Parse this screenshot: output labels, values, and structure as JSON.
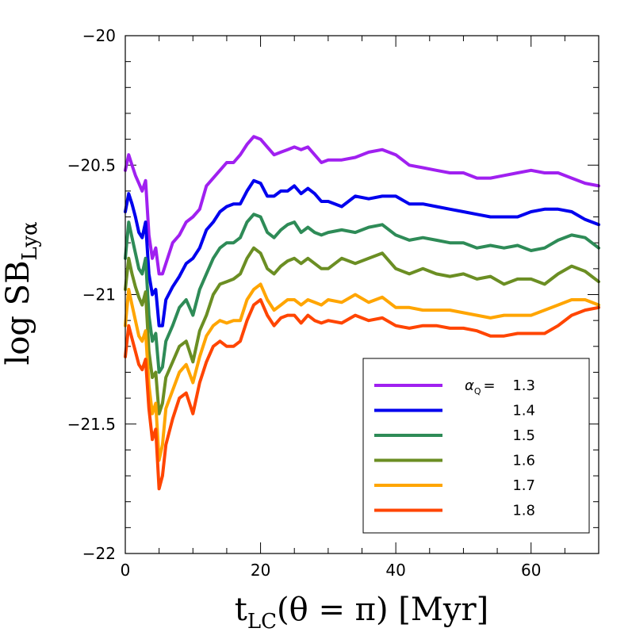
{
  "chart_data": {
    "type": "line",
    "xlabel_main": "t",
    "xlabel_sub": "LC",
    "xlabel_rest": "(θ = π)  [Myr]",
    "ylabel_main": "log SB",
    "ylabel_sub": "Lyα",
    "xlim": [
      0,
      70
    ],
    "ylim": [
      -22,
      -20
    ],
    "xticks_major": [
      0,
      20,
      40,
      60
    ],
    "xticks_minor": [
      5,
      10,
      15,
      25,
      30,
      35,
      45,
      50,
      55,
      65
    ],
    "yticks_major": [
      -22,
      -21.5,
      -21,
      -20.5,
      -20
    ],
    "yticks_labels": [
      "−22",
      "−21.5",
      "−21",
      "−20.5",
      "−20"
    ],
    "yticks_minor_step": 0.1,
    "legend_placement": "bottom-right",
    "legend_prefix": "α",
    "legend_prefix_sub": "Q",
    "legend_eq": "=",
    "series": [
      {
        "name": "1.3",
        "color": "#a020f0",
        "x": [
          0,
          0.5,
          1,
          1.5,
          2,
          2.5,
          3,
          3.5,
          4,
          4.5,
          5,
          5.5,
          6,
          7,
          8,
          9,
          10,
          11,
          12,
          13,
          14,
          15,
          16,
          17,
          18,
          19,
          20,
          21,
          22,
          23,
          24,
          25,
          26,
          27,
          28,
          29,
          30,
          32,
          34,
          36,
          38,
          40,
          42,
          44,
          46,
          48,
          50,
          52,
          54,
          56,
          58,
          60,
          62,
          64,
          66,
          68,
          70
        ],
        "y": [
          -20.52,
          -20.46,
          -20.5,
          -20.54,
          -20.57,
          -20.6,
          -20.56,
          -20.77,
          -20.86,
          -20.82,
          -20.92,
          -20.92,
          -20.88,
          -20.8,
          -20.77,
          -20.72,
          -20.7,
          -20.67,
          -20.58,
          -20.55,
          -20.52,
          -20.49,
          -20.49,
          -20.46,
          -20.42,
          -20.39,
          -20.4,
          -20.43,
          -20.46,
          -20.45,
          -20.44,
          -20.43,
          -20.44,
          -20.43,
          -20.46,
          -20.49,
          -20.48,
          -20.48,
          -20.47,
          -20.45,
          -20.44,
          -20.46,
          -20.5,
          -20.51,
          -20.52,
          -20.53,
          -20.53,
          -20.55,
          -20.55,
          -20.54,
          -20.53,
          -20.52,
          -20.53,
          -20.53,
          -20.55,
          -20.57,
          -20.58
        ]
      },
      {
        "name": "1.4",
        "color": "#0000ee",
        "x": [
          0,
          0.5,
          1,
          1.5,
          2,
          2.5,
          3,
          3.5,
          4,
          4.5,
          5,
          5.5,
          6,
          7,
          8,
          9,
          10,
          11,
          12,
          13,
          14,
          15,
          16,
          17,
          18,
          19,
          20,
          21,
          22,
          23,
          24,
          25,
          26,
          27,
          28,
          29,
          30,
          32,
          34,
          36,
          38,
          40,
          42,
          44,
          46,
          48,
          50,
          52,
          54,
          56,
          58,
          60,
          62,
          64,
          66,
          68,
          70
        ],
        "y": [
          -20.68,
          -20.61,
          -20.65,
          -20.7,
          -20.76,
          -20.78,
          -20.72,
          -20.92,
          -21.0,
          -20.98,
          -21.12,
          -21.12,
          -21.02,
          -20.97,
          -20.93,
          -20.88,
          -20.86,
          -20.82,
          -20.75,
          -20.72,
          -20.68,
          -20.66,
          -20.65,
          -20.65,
          -20.6,
          -20.56,
          -20.57,
          -20.62,
          -20.62,
          -20.6,
          -20.6,
          -20.58,
          -20.61,
          -20.59,
          -20.61,
          -20.64,
          -20.64,
          -20.66,
          -20.62,
          -20.63,
          -20.62,
          -20.62,
          -20.65,
          -20.65,
          -20.66,
          -20.67,
          -20.68,
          -20.69,
          -20.7,
          -20.7,
          -20.7,
          -20.68,
          -20.67,
          -20.67,
          -20.68,
          -20.71,
          -20.73
        ]
      },
      {
        "name": "1.5",
        "color": "#2e8b57",
        "x": [
          0,
          0.5,
          1,
          1.5,
          2,
          2.5,
          3,
          3.5,
          4,
          4.5,
          5,
          5.5,
          6,
          7,
          8,
          9,
          10,
          11,
          12,
          13,
          14,
          15,
          16,
          17,
          18,
          19,
          20,
          21,
          22,
          23,
          24,
          25,
          26,
          27,
          28,
          29,
          30,
          32,
          34,
          36,
          38,
          40,
          42,
          44,
          46,
          48,
          50,
          52,
          54,
          56,
          58,
          60,
          62,
          64,
          66,
          68,
          70
        ],
        "y": [
          -20.86,
          -20.72,
          -20.78,
          -20.84,
          -20.9,
          -20.92,
          -20.86,
          -21.08,
          -21.18,
          -21.15,
          -21.3,
          -21.28,
          -21.18,
          -21.12,
          -21.05,
          -21.02,
          -21.08,
          -20.98,
          -20.92,
          -20.86,
          -20.82,
          -20.8,
          -20.8,
          -20.78,
          -20.72,
          -20.69,
          -20.7,
          -20.76,
          -20.78,
          -20.75,
          -20.73,
          -20.72,
          -20.76,
          -20.74,
          -20.76,
          -20.77,
          -20.76,
          -20.75,
          -20.76,
          -20.74,
          -20.73,
          -20.77,
          -20.79,
          -20.78,
          -20.79,
          -20.8,
          -20.8,
          -20.82,
          -20.81,
          -20.82,
          -20.81,
          -20.83,
          -20.82,
          -20.79,
          -20.77,
          -20.78,
          -20.82
        ]
      },
      {
        "name": "1.6",
        "color": "#6b8e23",
        "x": [
          0,
          0.5,
          1,
          1.5,
          2,
          2.5,
          3,
          3.5,
          4,
          4.5,
          5,
          5.5,
          6,
          7,
          8,
          9,
          10,
          11,
          12,
          13,
          14,
          15,
          16,
          17,
          18,
          19,
          20,
          21,
          22,
          23,
          24,
          25,
          26,
          27,
          28,
          29,
          30,
          32,
          34,
          36,
          38,
          40,
          42,
          44,
          46,
          48,
          50,
          52,
          54,
          56,
          58,
          60,
          62,
          64,
          66,
          68,
          70
        ],
        "y": [
          -20.98,
          -20.86,
          -20.92,
          -20.97,
          -21.01,
          -21.04,
          -20.99,
          -21.22,
          -21.32,
          -21.3,
          -21.46,
          -21.42,
          -21.32,
          -21.26,
          -21.2,
          -21.18,
          -21.26,
          -21.14,
          -21.08,
          -21.0,
          -20.96,
          -20.95,
          -20.94,
          -20.92,
          -20.86,
          -20.82,
          -20.84,
          -20.9,
          -20.92,
          -20.89,
          -20.87,
          -20.86,
          -20.88,
          -20.86,
          -20.88,
          -20.9,
          -20.9,
          -20.86,
          -20.88,
          -20.86,
          -20.84,
          -20.9,
          -20.92,
          -20.9,
          -20.92,
          -20.93,
          -20.92,
          -20.94,
          -20.93,
          -20.96,
          -20.94,
          -20.94,
          -20.96,
          -20.92,
          -20.89,
          -20.91,
          -20.95
        ]
      },
      {
        "name": "1.7",
        "color": "#ffa500",
        "x": [
          0,
          0.5,
          1,
          1.5,
          2,
          2.5,
          3,
          3.5,
          4,
          4.5,
          5,
          5.5,
          6,
          7,
          8,
          9,
          10,
          11,
          12,
          13,
          14,
          15,
          16,
          17,
          18,
          19,
          20,
          21,
          22,
          23,
          24,
          25,
          26,
          27,
          28,
          29,
          30,
          32,
          34,
          36,
          38,
          40,
          42,
          44,
          46,
          48,
          50,
          52,
          54,
          56,
          58,
          60,
          62,
          64,
          66,
          68,
          70
        ],
        "y": [
          -21.12,
          -20.98,
          -21.04,
          -21.1,
          -21.16,
          -21.18,
          -21.14,
          -21.35,
          -21.46,
          -21.42,
          -21.64,
          -21.58,
          -21.44,
          -21.37,
          -21.3,
          -21.27,
          -21.34,
          -21.24,
          -21.16,
          -21.12,
          -21.1,
          -21.11,
          -21.1,
          -21.1,
          -21.02,
          -20.98,
          -20.96,
          -21.02,
          -21.06,
          -21.04,
          -21.02,
          -21.02,
          -21.04,
          -21.02,
          -21.03,
          -21.04,
          -21.02,
          -21.03,
          -21.0,
          -21.03,
          -21.01,
          -21.05,
          -21.05,
          -21.06,
          -21.06,
          -21.06,
          -21.07,
          -21.08,
          -21.09,
          -21.08,
          -21.08,
          -21.08,
          -21.06,
          -21.04,
          -21.02,
          -21.02,
          -21.04
        ]
      },
      {
        "name": "1.8",
        "color": "#ff4500",
        "x": [
          0,
          0.5,
          1,
          1.5,
          2,
          2.5,
          3,
          3.5,
          4,
          4.5,
          5,
          5.5,
          6,
          7,
          8,
          9,
          10,
          11,
          12,
          13,
          14,
          15,
          16,
          17,
          18,
          19,
          20,
          21,
          22,
          23,
          24,
          25,
          26,
          27,
          28,
          29,
          30,
          32,
          34,
          36,
          38,
          40,
          42,
          44,
          46,
          48,
          50,
          52,
          54,
          56,
          58,
          60,
          62,
          64,
          66,
          68,
          70
        ],
        "y": [
          -21.24,
          -21.12,
          -21.17,
          -21.22,
          -21.27,
          -21.29,
          -21.25,
          -21.44,
          -21.56,
          -21.52,
          -21.75,
          -21.7,
          -21.58,
          -21.48,
          -21.4,
          -21.38,
          -21.46,
          -21.34,
          -21.26,
          -21.2,
          -21.18,
          -21.2,
          -21.2,
          -21.18,
          -21.1,
          -21.04,
          -21.02,
          -21.08,
          -21.12,
          -21.09,
          -21.08,
          -21.08,
          -21.11,
          -21.08,
          -21.1,
          -21.11,
          -21.1,
          -21.11,
          -21.08,
          -21.1,
          -21.09,
          -21.12,
          -21.13,
          -21.12,
          -21.12,
          -21.13,
          -21.13,
          -21.14,
          -21.16,
          -21.16,
          -21.15,
          -21.15,
          -21.15,
          -21.12,
          -21.08,
          -21.06,
          -21.05
        ]
      }
    ]
  }
}
